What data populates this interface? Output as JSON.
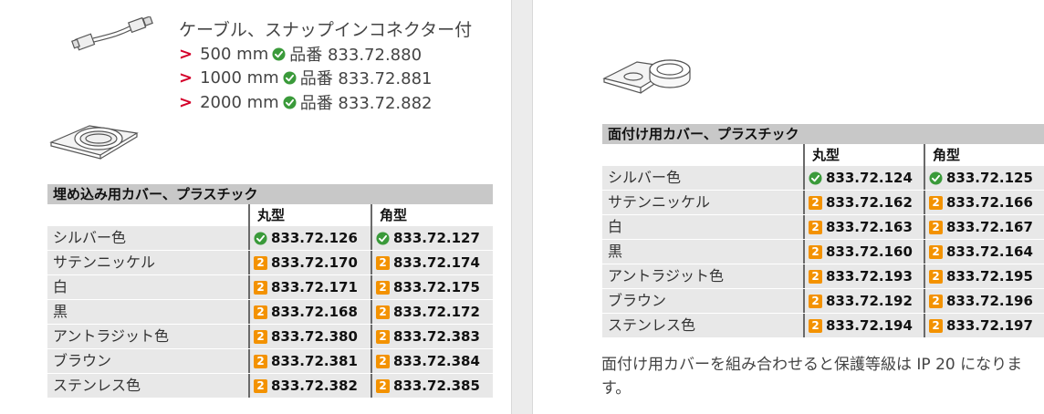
{
  "cable": {
    "title": "ケーブル、スナップインコネクター付",
    "variants": [
      {
        "arrow": ">",
        "length": "500 mm",
        "part": "品番 833.72.880"
      },
      {
        "arrow": ">",
        "length": "1000 mm",
        "part": "品番 833.72.881"
      },
      {
        "arrow": ">",
        "length": "2000 mm",
        "part": "品番 833.72.882"
      }
    ]
  },
  "left_table": {
    "title": "埋め込み用カバー、プラスチック",
    "col_round": "丸型",
    "col_square": "角型",
    "rows": [
      {
        "name": "シルバー色",
        "round": "833.72.126",
        "round_icon": "check-icon",
        "square": "833.72.127",
        "square_icon": "check-icon"
      },
      {
        "name": "サテンニッケル",
        "round": "833.72.170",
        "round_icon": "delivery-2-icon",
        "square": "833.72.174",
        "square_icon": "delivery-2-icon"
      },
      {
        "name": "白",
        "round": "833.72.171",
        "round_icon": "delivery-2-icon",
        "square": "833.72.175",
        "square_icon": "delivery-2-icon"
      },
      {
        "name": "黒",
        "round": "833.72.168",
        "round_icon": "delivery-2-icon",
        "square": "833.72.172",
        "square_icon": "delivery-2-icon"
      },
      {
        "name": "アントラジット色",
        "round": "833.72.380",
        "round_icon": "delivery-2-icon",
        "square": "833.72.383",
        "square_icon": "delivery-2-icon"
      },
      {
        "name": "ブラウン",
        "round": "833.72.381",
        "round_icon": "delivery-2-icon",
        "square": "833.72.384",
        "square_icon": "delivery-2-icon"
      },
      {
        "name": "ステンレス色",
        "round": "833.72.382",
        "round_icon": "delivery-2-icon",
        "square": "833.72.385",
        "square_icon": "delivery-2-icon"
      }
    ]
  },
  "right_table": {
    "title": "面付け用カバー、プラスチック",
    "col_round": "丸型",
    "col_square": "角型",
    "rows": [
      {
        "name": "シルバー色",
        "round": "833.72.124",
        "round_icon": "check-icon",
        "square": "833.72.125",
        "square_icon": "check-icon"
      },
      {
        "name": "サテンニッケル",
        "round": "833.72.162",
        "round_icon": "delivery-2-icon",
        "square": "833.72.166",
        "square_icon": "delivery-2-icon"
      },
      {
        "name": "白",
        "round": "833.72.163",
        "round_icon": "delivery-2-icon",
        "square": "833.72.167",
        "square_icon": "delivery-2-icon"
      },
      {
        "name": "黒",
        "round": "833.72.160",
        "round_icon": "delivery-2-icon",
        "square": "833.72.164",
        "square_icon": "delivery-2-icon"
      },
      {
        "name": "アントラジット色",
        "round": "833.72.193",
        "round_icon": "delivery-2-icon",
        "square": "833.72.195",
        "square_icon": "delivery-2-icon"
      },
      {
        "name": "ブラウン",
        "round": "833.72.192",
        "round_icon": "delivery-2-icon",
        "square": "833.72.196",
        "square_icon": "delivery-2-icon"
      },
      {
        "name": "ステンレス色",
        "round": "833.72.194",
        "round_icon": "delivery-2-icon",
        "square": "833.72.197",
        "square_icon": "delivery-2-icon"
      }
    ]
  },
  "note": "面付け用カバーを組み合わせると保護等級は IP 20 になります。",
  "badge_label": "2",
  "colors": {
    "accent_arrow": "#d4002a",
    "check_green": "#3a9a3a",
    "badge_orange": "#f39200",
    "title_bar": "#c8c8c8",
    "row_shade": "#e8e8e8"
  }
}
